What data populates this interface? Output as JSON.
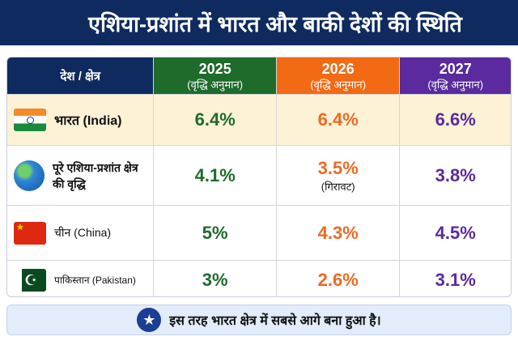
{
  "title": "एशिया-प्रशांत में भारत और बाकी देशों की स्थिति",
  "header": {
    "col0": "देश / क्षेत्र",
    "years": [
      {
        "year": "2025",
        "sub": "(वृद्धि अनुमान)"
      },
      {
        "year": "2026",
        "sub": "(वृद्धि अनुमान)"
      },
      {
        "year": "2027",
        "sub": "(वृद्धि अनुमान)"
      }
    ]
  },
  "rows": [
    {
      "name": "भारत (India)",
      "icon": "india-flag-icon",
      "values": [
        "6.4%",
        "6.4%",
        "6.6%"
      ],
      "note": ""
    },
    {
      "name": "पूरे एशिया-प्रशांत क्षेत्र की वृद्धि",
      "icon": "globe-icon",
      "values": [
        "4.1%",
        "3.5%",
        "3.8%"
      ],
      "note": "(गिरावट)"
    },
    {
      "name": "चीन (China)",
      "icon": "china-flag-icon",
      "values": [
        "5%",
        "4.3%",
        "4.5%"
      ],
      "note": ""
    },
    {
      "name": "पाकिस्तान (Pakistan)",
      "icon": "pakistan-flag-icon",
      "values": [
        "3%",
        "2.6%",
        "3.1%"
      ],
      "note": ""
    }
  ],
  "footer": {
    "icon": "star-icon",
    "text": "इस तरह भारत क्षेत्र में सबसे आगे बना हुआ है।"
  },
  "colors": {
    "navy": "#0f2a5f",
    "green": "#1e6b2c",
    "orange": "#f26a13",
    "purple": "#5a2a9e",
    "highlight_row": "#fdf2d6"
  }
}
